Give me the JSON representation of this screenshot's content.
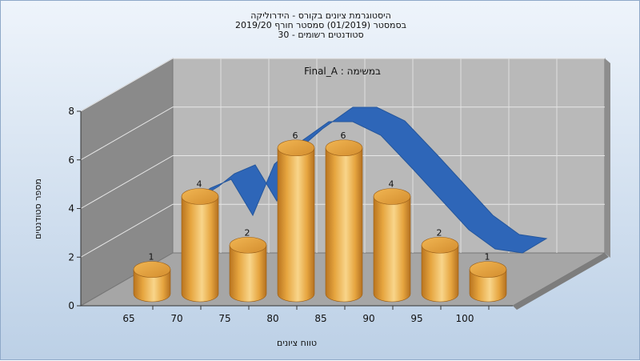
{
  "chart_data": {
    "type": "bar",
    "title_lines": [
      "היסטוגרמת ציונים בקורס - הידרוליקה",
      "בסמסטר  (01/2019)  סמסטר חורף 2019/20",
      "סטודנטים רשומים - 30"
    ],
    "legend_label": "Final_A : במשימה",
    "xlabel": "טווח ציונים",
    "ylabel": "מספר סטודנטים",
    "x_ticks": [
      "65",
      "70",
      "75",
      "80",
      "85",
      "90",
      "95",
      "100"
    ],
    "y_ticks": [
      "0",
      "2",
      "4",
      "6",
      "8"
    ],
    "ylim": [
      0,
      8
    ],
    "series": [
      {
        "kind": "bar",
        "values": [
          1,
          4,
          2,
          6,
          6,
          4,
          2,
          1
        ],
        "labels": [
          "1",
          "4",
          "2",
          "6",
          "6",
          "4",
          "2",
          "1"
        ],
        "color": "#e6a53f"
      },
      {
        "kind": "ribbon",
        "color": "#2e66b8"
      }
    ],
    "grid": true,
    "colors": {
      "back_wall": "#b9b9b9",
      "side_wall": "#8a8a8a",
      "floor": "#a6a6a6",
      "background_top": "#eef4fb",
      "background_bottom": "#bcd0e6"
    }
  }
}
